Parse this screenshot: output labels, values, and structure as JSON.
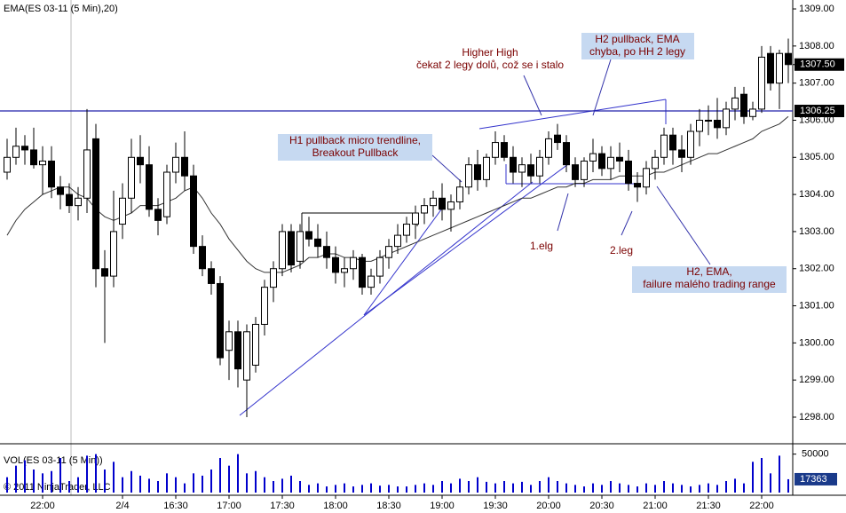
{
  "chart_data": {
    "type": "candlestick",
    "title": "EMA(ES 03-11 (5 Min),20)",
    "categories": [
      null,
      null,
      null,
      null,
      "22:00",
      null,
      null,
      null,
      null,
      null,
      null,
      null,
      null,
      "2/4",
      null,
      null,
      null,
      null,
      null,
      "16:30",
      null,
      null,
      null,
      null,
      null,
      "17:00",
      null,
      null,
      null,
      null,
      null,
      "17:30",
      null,
      null,
      null,
      null,
      null,
      "18:00",
      null,
      null,
      null,
      null,
      null,
      "18:30",
      null,
      null,
      null,
      null,
      null,
      "19:00",
      null,
      null,
      null,
      null,
      null,
      "19:30",
      null,
      null,
      null,
      null,
      null,
      "20:00",
      null,
      null,
      null,
      null,
      null,
      "20:30",
      null,
      null,
      null,
      null,
      null,
      "21:00",
      null,
      null,
      null,
      null,
      null,
      "21:30",
      null,
      null,
      null,
      null,
      null,
      "22:00",
      null,
      null,
      null
    ],
    "open": [
      1304.6,
      1305.0,
      1305.3,
      1305.2,
      1304.8,
      1304.9,
      1304.2,
      1304.0,
      1303.7,
      1303.9,
      1305.5,
      1302.0,
      1301.8,
      1303.2,
      1303.9,
      1305.0,
      1304.8,
      1303.6,
      1303.4,
      1304.6,
      1305.0,
      1304.5,
      1302.6,
      1302.0,
      1301.6,
      1299.8,
      1300.3,
      1299.0,
      1299.4,
      1300.5,
      1301.5,
      1302.0,
      1303.0,
      1302.2,
      1303.0,
      1302.8,
      1302.6,
      1302.3,
      1301.9,
      1302.0,
      1302.3,
      1301.5,
      1301.8,
      1302.3,
      1302.6,
      1302.9,
      1303.2,
      1303.5,
      1303.7,
      1303.9,
      1303.6,
      1303.8,
      1304.2,
      1304.8,
      1304.4,
      1305.0,
      1305.4,
      1305.0,
      1304.6,
      1304.8,
      1304.5,
      1305.0,
      1305.6,
      1305.4,
      1304.8,
      1304.4,
      1304.9,
      1305.1,
      1304.7,
      1305.0,
      1304.9,
      1304.3,
      1304.2,
      1304.7,
      1305.0,
      1305.6,
      1305.2,
      1305.0,
      1305.7,
      1306.0,
      1306.0,
      1305.8,
      1306.3,
      1306.7,
      1306.1,
      1306.3,
      1307.8,
      1307.0,
      1307.8
    ],
    "high": [
      1305.5,
      1305.8,
      1305.6,
      1305.8,
      1305.3,
      1305.3,
      1304.5,
      1304.3,
      1304.2,
      1306.3,
      1305.9,
      1302.5,
      1304.1,
      1304.3,
      1305.5,
      1305.6,
      1305.3,
      1303.9,
      1304.8,
      1305.4,
      1305.7,
      1304.8,
      1302.9,
      1302.2,
      1301.8,
      1300.6,
      1300.6,
      1300.5,
      1300.7,
      1301.7,
      1302.2,
      1303.2,
      1303.2,
      1303.2,
      1303.4,
      1303.2,
      1303.0,
      1302.6,
      1302.3,
      1302.5,
      1302.4,
      1302.0,
      1302.5,
      1302.8,
      1303.2,
      1303.4,
      1303.7,
      1303.9,
      1304.1,
      1304.3,
      1304.0,
      1304.4,
      1305.0,
      1305.2,
      1305.1,
      1305.7,
      1305.6,
      1305.3,
      1305.0,
      1305.1,
      1305.2,
      1305.7,
      1305.9,
      1305.6,
      1305.0,
      1305.0,
      1305.5,
      1305.3,
      1305.3,
      1305.4,
      1305.2,
      1304.6,
      1304.9,
      1305.2,
      1305.8,
      1305.8,
      1305.6,
      1305.9,
      1306.3,
      1306.4,
      1306.6,
      1306.5,
      1306.9,
      1306.9,
      1306.5,
      1308.0,
      1308.0,
      1307.9,
      1308.2
    ],
    "low": [
      1304.4,
      1304.8,
      1304.8,
      1304.7,
      1304.0,
      1303.9,
      1303.6,
      1303.5,
      1303.3,
      1303.5,
      1301.5,
      1300.0,
      1301.5,
      1302.8,
      1303.5,
      1304.3,
      1303.4,
      1302.9,
      1303.2,
      1304.3,
      1304.1,
      1302.4,
      1301.8,
      1301.3,
      1299.4,
      1299.0,
      1298.8,
      1298.0,
      1299.2,
      1300.2,
      1301.1,
      1301.8,
      1301.9,
      1302.0,
      1302.6,
      1302.3,
      1302.0,
      1301.6,
      1301.5,
      1301.7,
      1301.3,
      1301.3,
      1301.6,
      1302.0,
      1302.4,
      1302.7,
      1302.8,
      1303.2,
      1303.4,
      1303.3,
      1303.0,
      1303.6,
      1304.0,
      1304.1,
      1304.2,
      1304.8,
      1304.9,
      1304.3,
      1304.2,
      1304.3,
      1304.3,
      1304.8,
      1305.2,
      1304.6,
      1304.2,
      1304.2,
      1304.6,
      1304.5,
      1304.4,
      1304.6,
      1304.1,
      1303.8,
      1304.0,
      1304.4,
      1304.8,
      1304.8,
      1304.6,
      1304.8,
      1305.3,
      1305.6,
      1305.5,
      1305.6,
      1306.0,
      1305.9,
      1306.0,
      1306.2,
      1306.8,
      1306.3,
      1307.0
    ],
    "close": [
      1305.0,
      1305.3,
      1305.2,
      1304.8,
      1304.9,
      1304.2,
      1304.0,
      1303.7,
      1303.9,
      1305.2,
      1302.0,
      1301.8,
      1303.0,
      1303.9,
      1305.0,
      1304.8,
      1303.6,
      1303.3,
      1304.6,
      1305.0,
      1304.5,
      1302.6,
      1302.0,
      1301.6,
      1299.6,
      1300.3,
      1299.3,
      1300.3,
      1300.5,
      1301.5,
      1302.0,
      1303.0,
      1302.1,
      1303.0,
      1302.8,
      1302.6,
      1302.3,
      1301.9,
      1302.0,
      1302.3,
      1301.5,
      1301.8,
      1302.3,
      1302.6,
      1302.9,
      1303.2,
      1303.5,
      1303.7,
      1303.9,
      1303.6,
      1303.8,
      1304.2,
      1304.8,
      1304.4,
      1305.0,
      1305.4,
      1305.0,
      1304.6,
      1304.8,
      1304.5,
      1305.0,
      1305.5,
      1305.4,
      1304.8,
      1304.4,
      1304.9,
      1305.1,
      1304.7,
      1305.0,
      1304.9,
      1304.3,
      1304.2,
      1304.7,
      1305.0,
      1305.6,
      1305.2,
      1305.0,
      1305.7,
      1306.0,
      1306.0,
      1305.8,
      1306.3,
      1306.6,
      1306.1,
      1306.3,
      1307.7,
      1307.0,
      1307.8,
      1307.5
    ],
    "ema": [
      1302.9,
      1303.3,
      1303.6,
      1303.8,
      1304.0,
      1304.1,
      1304.2,
      1304.2,
      1304.0,
      1303.9,
      1303.6,
      1303.4,
      1303.3,
      1303.4,
      1303.5,
      1303.7,
      1303.7,
      1303.7,
      1303.8,
      1303.9,
      1304.1,
      1304.2,
      1303.9,
      1303.5,
      1303.2,
      1302.8,
      1302.5,
      1302.2,
      1302.0,
      1301.9,
      1301.9,
      1301.9,
      1302.0,
      1302.1,
      1302.3,
      1302.3,
      1302.4,
      1302.4,
      1302.3,
      1302.3,
      1302.2,
      1302.2,
      1302.3,
      1302.4,
      1302.5,
      1302.6,
      1302.7,
      1302.8,
      1302.9,
      1303.0,
      1303.1,
      1303.2,
      1303.3,
      1303.4,
      1303.5,
      1303.6,
      1303.7,
      1303.8,
      1303.9,
      1303.9,
      1304.0,
      1304.1,
      1304.2,
      1304.2,
      1304.3,
      1304.3,
      1304.4,
      1304.4,
      1304.4,
      1304.5,
      1304.5,
      1304.5,
      1304.5,
      1304.6,
      1304.6,
      1304.7,
      1304.8,
      1304.9,
      1305.0,
      1305.1,
      1305.1,
      1305.2,
      1305.3,
      1305.4,
      1305.5,
      1305.7,
      1305.8,
      1305.9,
      1306.1
    ],
    "ylim": [
      1297.33,
      1309.24
    ],
    "yticks": [
      {
        "value": 1298,
        "label": "1298.00"
      },
      {
        "value": 1299,
        "label": "1299.00"
      },
      {
        "value": 1300,
        "label": "1300.00"
      },
      {
        "value": 1301,
        "label": "1301.00"
      },
      {
        "value": 1302,
        "label": "1302.00"
      },
      {
        "value": 1303,
        "label": "1303.00"
      },
      {
        "value": 1304,
        "label": "1304.00"
      },
      {
        "value": 1305,
        "label": "1305.00"
      },
      {
        "value": 1306,
        "label": "1306.00"
      },
      {
        "value": 1307,
        "label": "1307.00"
      },
      {
        "value": 1308,
        "label": "1308.00"
      },
      {
        "value": 1309,
        "label": "1309.00"
      }
    ],
    "hline": {
      "value": 1306.25,
      "label": "1306.25"
    },
    "last_price": {
      "value": 1307.5,
      "label": "1307.50"
    },
    "volume": {
      "title": "VOL(ES 03-11 (5 Min))",
      "values": [
        20000,
        35000,
        42000,
        30000,
        25000,
        28000,
        45000,
        15000,
        20000,
        48000,
        50000,
        30000,
        40000,
        20000,
        28000,
        22000,
        18000,
        15000,
        25000,
        20000,
        12000,
        25000,
        22000,
        30000,
        45000,
        35000,
        50000,
        25000,
        28000,
        20000,
        15000,
        18000,
        22000,
        15000,
        10000,
        12000,
        8000,
        10000,
        12000,
        8000,
        10000,
        12000,
        9000,
        10000,
        8000,
        8000,
        10000,
        12000,
        10000,
        15000,
        12000,
        18000,
        15000,
        20000,
        14000,
        12000,
        15000,
        12000,
        14000,
        10000,
        15000,
        20000,
        15000,
        12000,
        10000,
        8000,
        12000,
        10000,
        15000,
        12000,
        10000,
        8000,
        12000,
        10000,
        15000,
        12000,
        10000,
        8000,
        10000,
        12000,
        10000,
        15000,
        18000,
        12000,
        40000,
        45000,
        25000,
        48000,
        17363
      ],
      "ylim": [
        0,
        60000
      ],
      "yticks": [
        50000
      ]
    },
    "copyright": "© 2011 NinjaTrader, LLC",
    "annotations": [
      {
        "lines": [
          "Higher High",
          "čekat 2 legy dolů, což se i stalo"
        ]
      },
      {
        "lines": [
          "H2 pullback, EMA",
          "chyba, po HH 2 legy"
        ]
      },
      {
        "lines": [
          "H1 pullback micro trendline,",
          "Breakout Pullback"
        ]
      },
      {
        "lines": [
          "1.elg"
        ]
      },
      {
        "lines": [
          "2.leg"
        ]
      },
      {
        "lines": [
          "H2, EMA,",
          "failure malého trading range"
        ]
      }
    ]
  }
}
